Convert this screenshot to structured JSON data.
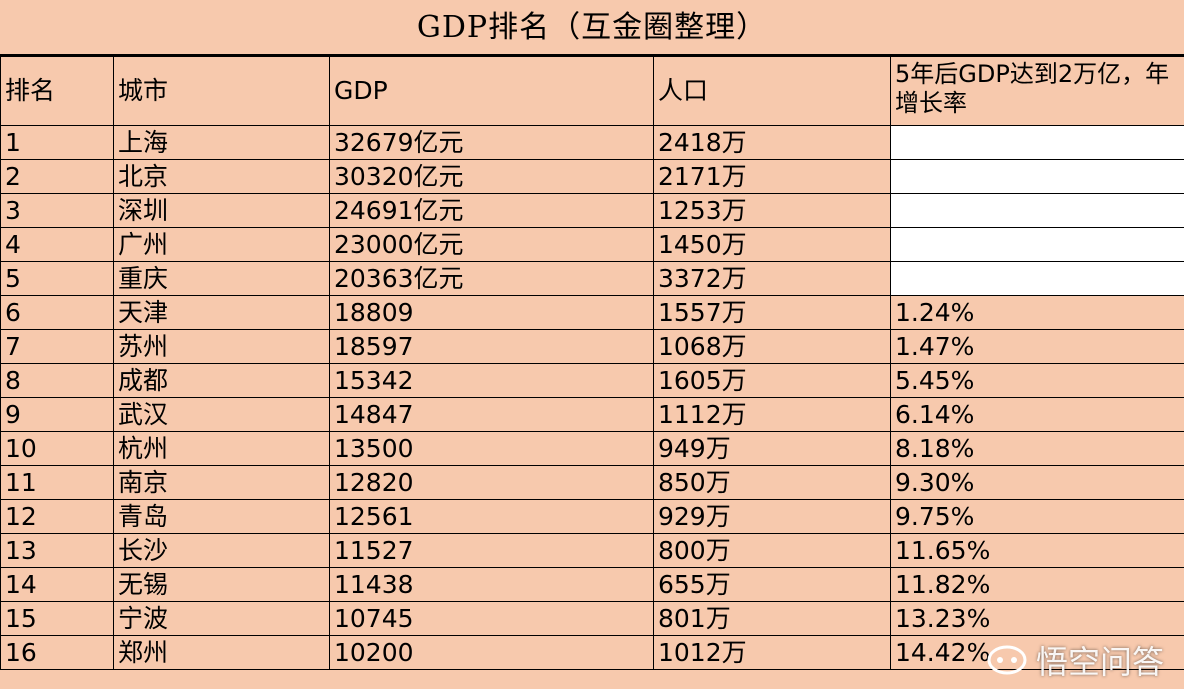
{
  "title": "GDP排名（互金圈整理）",
  "headers": {
    "rank": "排名",
    "city": "城市",
    "gdp": "GDP",
    "population": "人口",
    "rate": "5年后GDP达到2万亿，年增长率"
  },
  "rows": [
    {
      "rank": "1",
      "city": "上海",
      "gdp": "32679亿元",
      "population": "2418万",
      "rate": ""
    },
    {
      "rank": "2",
      "city": "北京",
      "gdp": "30320亿元",
      "population": "2171万",
      "rate": ""
    },
    {
      "rank": "3",
      "city": "深圳",
      "gdp": "24691亿元",
      "population": "1253万",
      "rate": ""
    },
    {
      "rank": "4",
      "city": "广州",
      "gdp": "23000亿元",
      "population": "1450万",
      "rate": ""
    },
    {
      "rank": "5",
      "city": "重庆",
      "gdp": "20363亿元",
      "population": "3372万",
      "rate": ""
    },
    {
      "rank": "6",
      "city": "天津",
      "gdp": "18809",
      "population": "1557万",
      "rate": "1.24%"
    },
    {
      "rank": "7",
      "city": "苏州",
      "gdp": "18597",
      "population": "1068万",
      "rate": "1.47%"
    },
    {
      "rank": "8",
      "city": "成都",
      "gdp": "15342",
      "population": "1605万",
      "rate": "5.45%"
    },
    {
      "rank": "9",
      "city": "武汉",
      "gdp": "14847",
      "population": "1112万",
      "rate": "6.14%"
    },
    {
      "rank": "10",
      "city": "杭州",
      "gdp": "13500",
      "population": "949万",
      "rate": "8.18%"
    },
    {
      "rank": "11",
      "city": "南京",
      "gdp": "12820",
      "population": "850万",
      "rate": "9.30%"
    },
    {
      "rank": "12",
      "city": "青岛",
      "gdp": "12561",
      "population": "929万",
      "rate": "9.75%"
    },
    {
      "rank": "13",
      "city": "长沙",
      "gdp": "11527",
      "population": "800万",
      "rate": "11.65%"
    },
    {
      "rank": "14",
      "city": "无锡",
      "gdp": "11438",
      "population": "655万",
      "rate": "11.82%"
    },
    {
      "rank": "15",
      "city": "宁波",
      "gdp": "10745",
      "population": "801万",
      "rate": "13.23%"
    },
    {
      "rank": "16",
      "city": "郑州",
      "gdp": "10200",
      "population": "1012万",
      "rate": "14.42%"
    }
  ],
  "watermark": {
    "text": "悟空问答",
    "icon": "wukong-logo-icon"
  },
  "colors": {
    "cell_background": "#f7c9ad",
    "blank_cell": "#ffffff",
    "border": "#000000"
  }
}
